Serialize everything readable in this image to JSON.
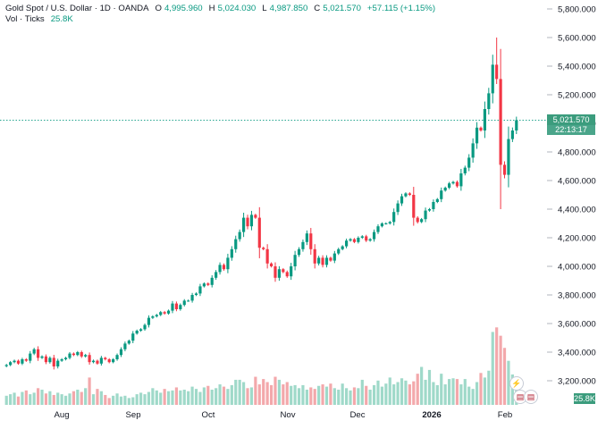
{
  "header": {
    "symbol": "Gold Spot / U.S. Dollar · 1D · OANDA",
    "open_label": "O",
    "open": "4,995.960",
    "high_label": "H",
    "high": "5,024.030",
    "low_label": "L",
    "low": "4,987.850",
    "close_label": "C",
    "close": "5,021.570",
    "change": "+57.115 (+1.15%)",
    "volume_label": "Vol · Ticks",
    "volume": "25.8K"
  },
  "price_tag": "5,021.570",
  "countdown": "22:13:17",
  "volume_tag": "25.8K",
  "event_badges": [
    "lightning-icon",
    "us-flag-icon",
    "us-flag-icon"
  ],
  "colors": {
    "up": "#089981",
    "down": "#f23645",
    "up_volume": "#9fd9c9",
    "down_volume": "#f3a8ab",
    "last_price_line": "#089981"
  },
  "chart_data": {
    "type": "candlestick",
    "title": "Gold Spot / U.S. Dollar · 1D · OANDA",
    "x_tick_labels": [
      "Aug",
      "Sep",
      "Oct",
      "Nov",
      "Dec",
      "2026",
      "Feb"
    ],
    "y_tick_labels": [
      "3,200.000",
      "3,400.000",
      "3,600.000",
      "3,800.000",
      "4,000.000",
      "4,200.000",
      "4,400.000",
      "4,600.000",
      "4,800.000",
      "5,000.000",
      "5,200.000",
      "5,400.000",
      "5,600.000",
      "5,800.000"
    ],
    "ylim": [
      3060,
      5850
    ],
    "last_price": 5021.57,
    "closes": [
      3310,
      3330,
      3340,
      3320,
      3350,
      3340,
      3390,
      3420,
      3360,
      3370,
      3330,
      3360,
      3300,
      3340,
      3350,
      3360,
      3390,
      3380,
      3400,
      3370,
      3380,
      3330,
      3340,
      3320,
      3360,
      3350,
      3330,
      3350,
      3380,
      3420,
      3460,
      3480,
      3530,
      3550,
      3560,
      3590,
      3640,
      3650,
      3660,
      3680,
      3670,
      3690,
      3740,
      3700,
      3730,
      3760,
      3760,
      3800,
      3810,
      3860,
      3880,
      3870,
      3920,
      3960,
      4010,
      3980,
      4060,
      4120,
      4190,
      4240,
      4340,
      4280,
      4360,
      4340,
      4130,
      4120,
      4020,
      4000,
      3920,
      3980,
      3960,
      3930,
      4000,
      4080,
      4120,
      4170,
      4230,
      4120,
      4020,
      4060,
      4010,
      4060,
      4040,
      4090,
      4120,
      4140,
      4180,
      4190,
      4170,
      4200,
      4210,
      4180,
      4190,
      4240,
      4280,
      4300,
      4300,
      4310,
      4380,
      4440,
      4490,
      4510,
      4500,
      4340,
      4310,
      4330,
      4390,
      4400,
      4450,
      4470,
      4530,
      4550,
      4580,
      4590,
      4560,
      4650,
      4690,
      4760,
      4860,
      4970,
      4950,
      5100,
      5210,
      5410,
      5310,
      4710,
      4640,
      4890,
      4950,
      5021.57
    ],
    "volumes_k": [
      12,
      14,
      16,
      11,
      17,
      19,
      14,
      16,
      22,
      20,
      15,
      18,
      13,
      16,
      14,
      12,
      15,
      18,
      20,
      17,
      22,
      36,
      14,
      21,
      18,
      13,
      9,
      12,
      15,
      11,
      12,
      9,
      10,
      14,
      16,
      14,
      17,
      22,
      19,
      16,
      21,
      18,
      19,
      23,
      19,
      20,
      18,
      24,
      21,
      17,
      23,
      25,
      20,
      22,
      27,
      24,
      21,
      26,
      33,
      33,
      30,
      22,
      23,
      37,
      27,
      34,
      30,
      26,
      37,
      33,
      27,
      30,
      25,
      26,
      22,
      26,
      20,
      23,
      21,
      25,
      27,
      24,
      28,
      22,
      20,
      28,
      22,
      19,
      23,
      22,
      33,
      25,
      20,
      26,
      32,
      24,
      28,
      36,
      27,
      30,
      35,
      32,
      27,
      31,
      41,
      50,
      33,
      46,
      30,
      26,
      41,
      27,
      34,
      35,
      34,
      27,
      34,
      24,
      21,
      30,
      42,
      36,
      45,
      96,
      102,
      91,
      75,
      58,
      40,
      25.8
    ]
  }
}
